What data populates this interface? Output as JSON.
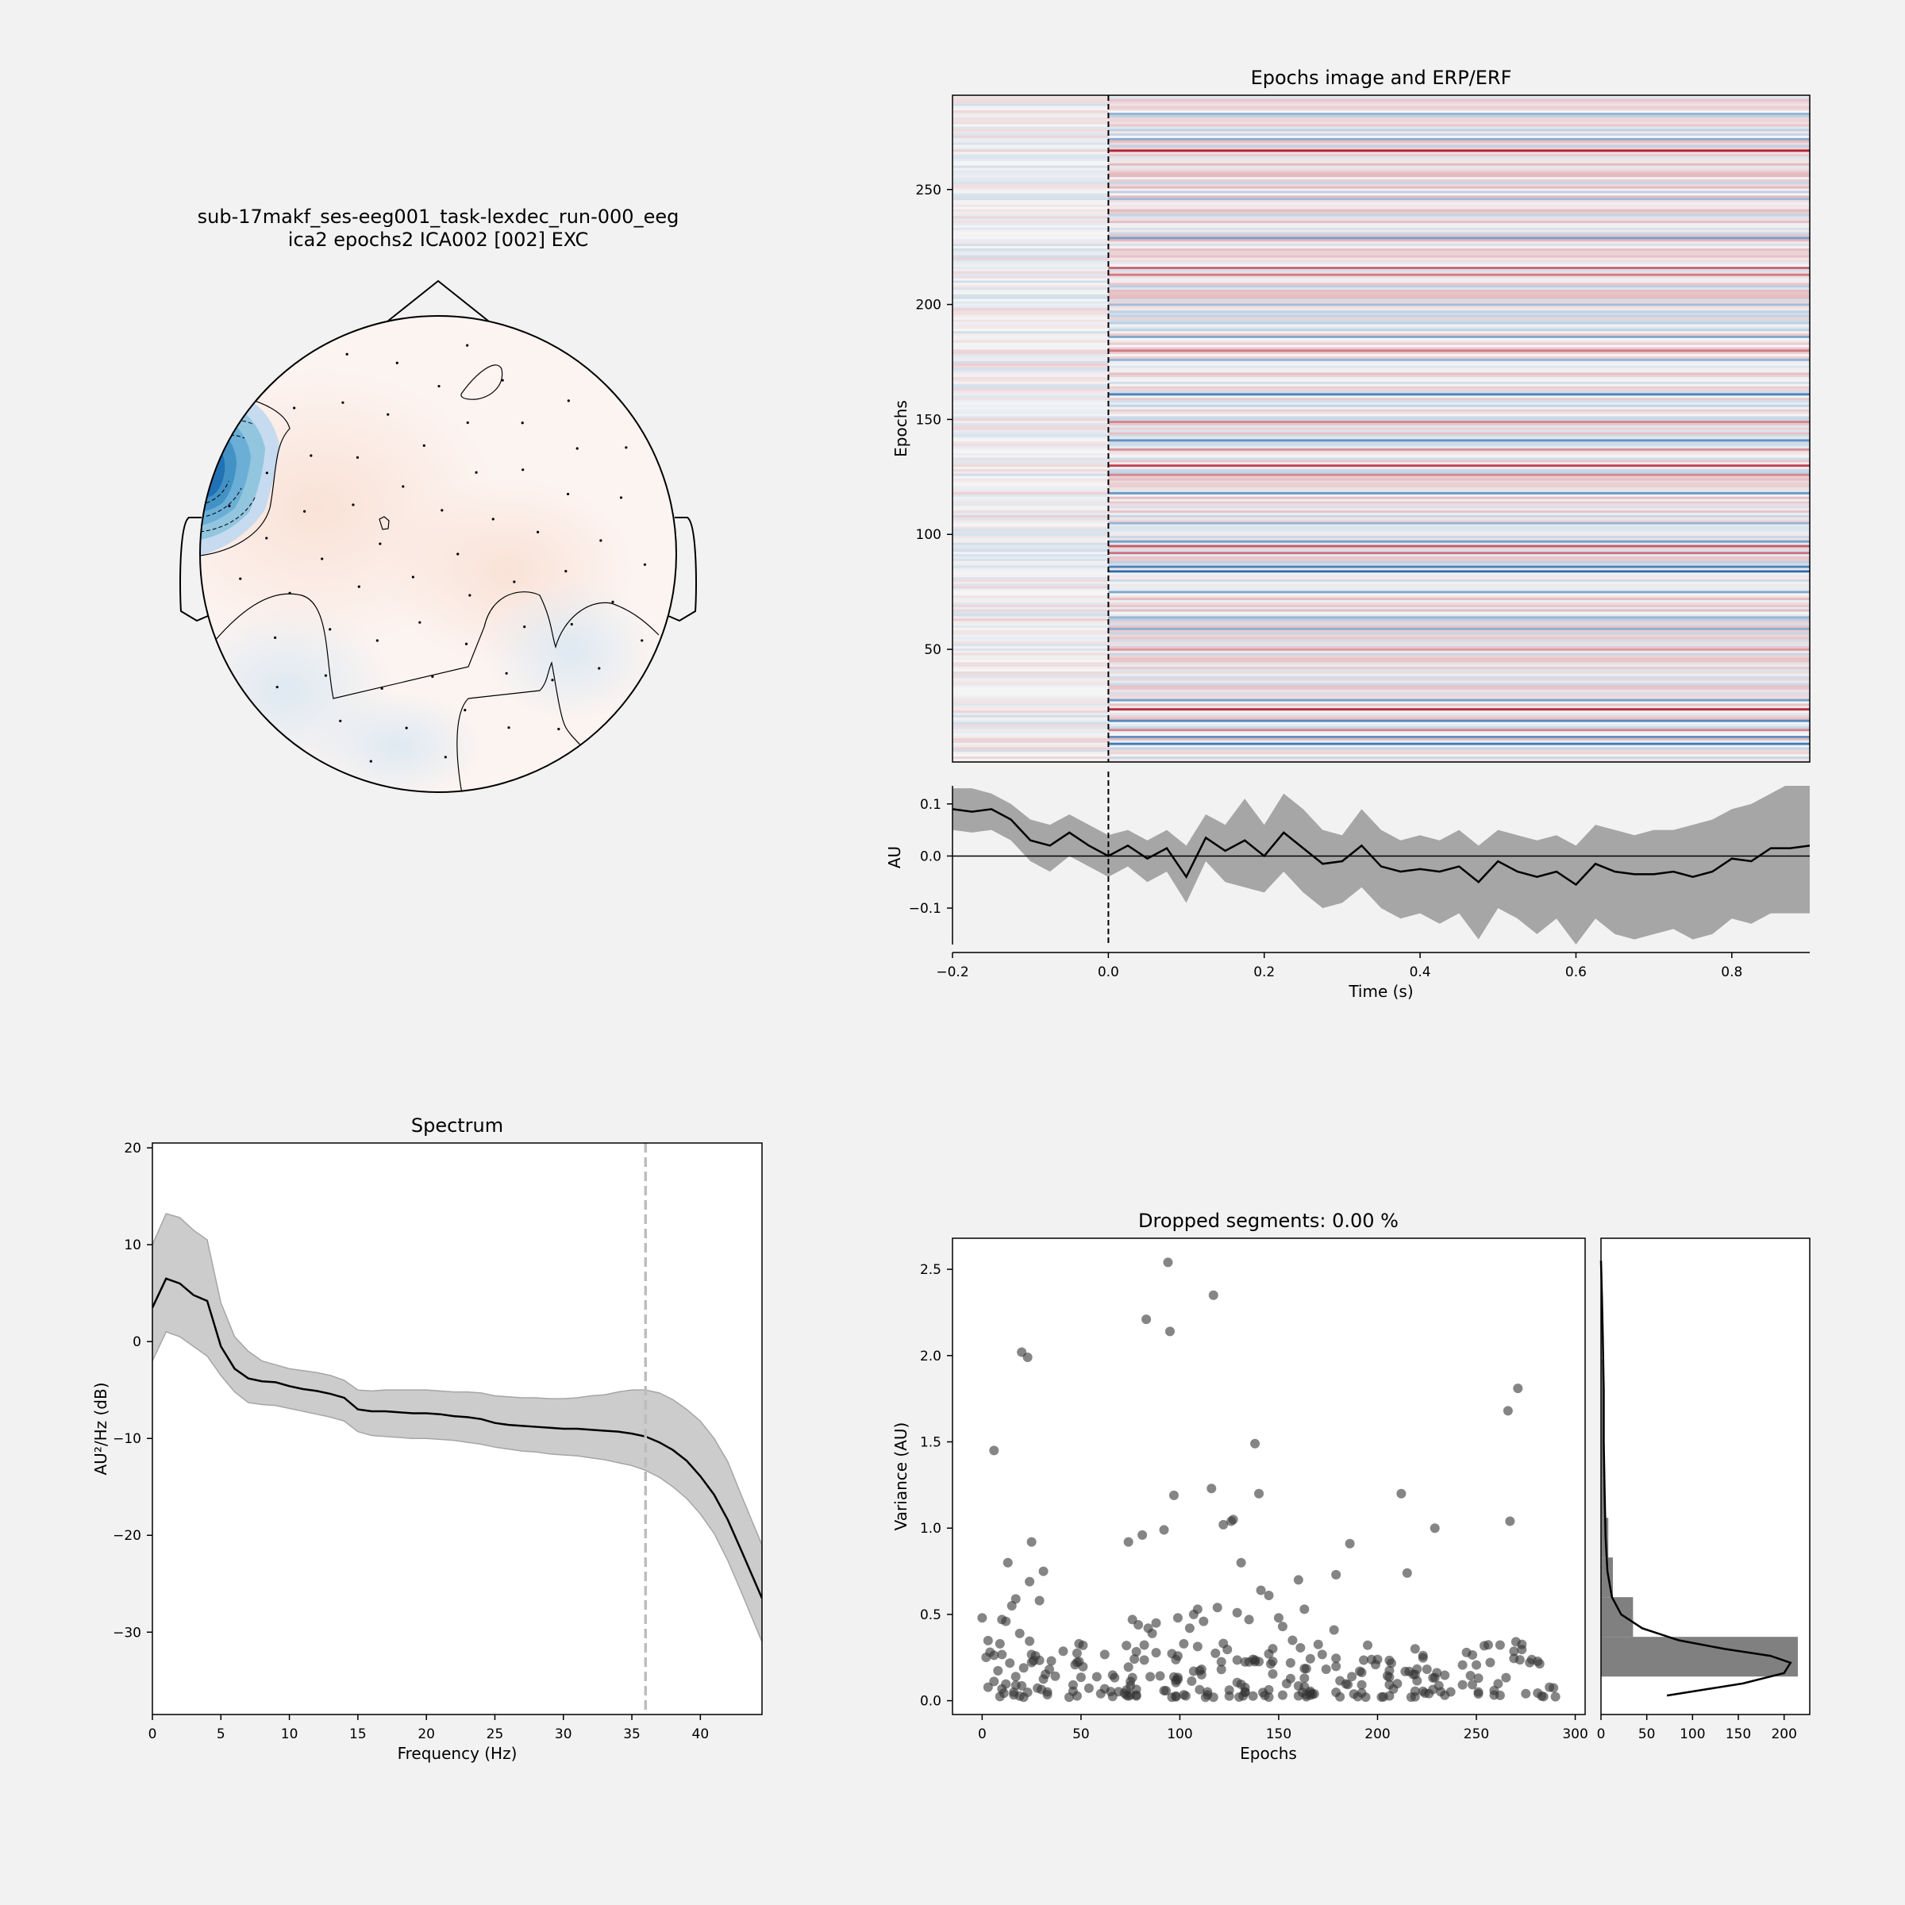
{
  "topomap": {
    "title_line1": "sub-17makf_ses-eeg001_task-lexdec_run-000_eeg",
    "title_line2": "ica2 epochs2 ICA002 [002] EXC"
  },
  "colors": {
    "background": "#f2f2f2",
    "negative": "#08306b",
    "positive": "#67001f",
    "band_erp": "#a6a6a6",
    "band_psd": "#cccccc",
    "scatter": "#333333",
    "hist": "#808080"
  },
  "chart_data": [
    {
      "type": "heatmap",
      "id": "epochs_image",
      "title": "Epochs image and ERP/ERF",
      "xlabel": "",
      "ylabel": "Epochs",
      "xlim": [
        -0.2,
        0.9
      ],
      "ylim": [
        1,
        291
      ],
      "yticks": [
        50,
        100,
        150,
        200,
        250
      ],
      "n_epochs": 290,
      "stimulus_onset": 0.0,
      "colormap": "RdBu_r",
      "strong_rows": [
        {
          "epoch": 9,
          "sign": -1,
          "strength": 0.85
        },
        {
          "epoch": 12,
          "sign": -1,
          "strength": 0.7
        },
        {
          "epoch": 15,
          "sign": 1,
          "strength": 0.5
        },
        {
          "epoch": 19,
          "sign": -1,
          "strength": 0.75
        },
        {
          "epoch": 24,
          "sign": 1,
          "strength": 0.9
        },
        {
          "epoch": 28,
          "sign": -1,
          "strength": 0.6
        },
        {
          "epoch": 50,
          "sign": 1,
          "strength": 0.4
        },
        {
          "epoch": 59,
          "sign": -1,
          "strength": 0.5
        },
        {
          "epoch": 64,
          "sign": -1,
          "strength": 0.45
        },
        {
          "epoch": 75,
          "sign": -1,
          "strength": 0.55
        },
        {
          "epoch": 84,
          "sign": -1,
          "strength": 0.95
        },
        {
          "epoch": 86,
          "sign": -1,
          "strength": 0.8
        },
        {
          "epoch": 92,
          "sign": 1,
          "strength": 0.6
        },
        {
          "epoch": 95,
          "sign": 1,
          "strength": 0.7
        },
        {
          "epoch": 97,
          "sign": -1,
          "strength": 0.6
        },
        {
          "epoch": 105,
          "sign": -1,
          "strength": 0.45
        },
        {
          "epoch": 118,
          "sign": -1,
          "strength": 0.65
        },
        {
          "epoch": 126,
          "sign": 1,
          "strength": 0.5
        },
        {
          "epoch": 130,
          "sign": 1,
          "strength": 0.8
        },
        {
          "epoch": 137,
          "sign": 1,
          "strength": 0.45
        },
        {
          "epoch": 141,
          "sign": -1,
          "strength": 0.7
        },
        {
          "epoch": 149,
          "sign": 1,
          "strength": 0.5
        },
        {
          "epoch": 161,
          "sign": -1,
          "strength": 0.8
        },
        {
          "epoch": 176,
          "sign": -1,
          "strength": 0.45
        },
        {
          "epoch": 180,
          "sign": 1,
          "strength": 0.55
        },
        {
          "epoch": 186,
          "sign": -1,
          "strength": 0.55
        },
        {
          "epoch": 200,
          "sign": -1,
          "strength": 0.4
        },
        {
          "epoch": 213,
          "sign": 1,
          "strength": 0.55
        },
        {
          "epoch": 216,
          "sign": 1,
          "strength": 0.65
        },
        {
          "epoch": 229,
          "sign": -1,
          "strength": 0.6
        },
        {
          "epoch": 246,
          "sign": -1,
          "strength": 0.4
        },
        {
          "epoch": 267,
          "sign": 1,
          "strength": 0.95
        },
        {
          "epoch": 272,
          "sign": -1,
          "strength": 0.5
        },
        {
          "epoch": 283,
          "sign": -1,
          "strength": 0.45
        }
      ]
    },
    {
      "type": "line",
      "id": "erp",
      "xlabel": "Time (s)",
      "ylabel": "AU",
      "xlim": [
        -0.2,
        0.9
      ],
      "ylim": [
        -0.17,
        0.15
      ],
      "xticks": [
        -0.2,
        0.0,
        0.2,
        0.4,
        0.6,
        0.8
      ],
      "yticks": [
        -0.1,
        0.0,
        0.1
      ],
      "x": [
        -0.2,
        -0.175,
        -0.15,
        -0.125,
        -0.1,
        -0.075,
        -0.05,
        -0.025,
        0.0,
        0.025,
        0.05,
        0.075,
        0.1,
        0.125,
        0.15,
        0.175,
        0.2,
        0.225,
        0.25,
        0.275,
        0.3,
        0.325,
        0.35,
        0.375,
        0.4,
        0.425,
        0.45,
        0.475,
        0.5,
        0.525,
        0.55,
        0.575,
        0.6,
        0.625,
        0.65,
        0.675,
        0.7,
        0.725,
        0.75,
        0.775,
        0.8,
        0.825,
        0.85,
        0.875,
        0.9
      ],
      "mean": [
        0.09,
        0.085,
        0.09,
        0.07,
        0.03,
        0.02,
        0.045,
        0.02,
        0.0,
        0.02,
        -0.005,
        0.015,
        -0.04,
        0.035,
        0.01,
        0.03,
        0.0,
        0.045,
        0.015,
        -0.015,
        -0.01,
        0.02,
        -0.02,
        -0.03,
        -0.025,
        -0.03,
        -0.02,
        -0.05,
        -0.01,
        -0.03,
        -0.04,
        -0.03,
        -0.055,
        -0.015,
        -0.03,
        -0.035,
        -0.035,
        -0.03,
        -0.04,
        -0.03,
        -0.005,
        -0.01,
        0.015,
        0.015,
        0.02
      ],
      "upper": [
        0.13,
        0.13,
        0.12,
        0.1,
        0.07,
        0.06,
        0.08,
        0.06,
        0.04,
        0.05,
        0.03,
        0.05,
        0.02,
        0.08,
        0.06,
        0.11,
        0.06,
        0.12,
        0.09,
        0.05,
        0.04,
        0.09,
        0.05,
        0.03,
        0.04,
        0.03,
        0.05,
        0.02,
        0.05,
        0.04,
        0.03,
        0.04,
        0.02,
        0.06,
        0.05,
        0.04,
        0.05,
        0.05,
        0.06,
        0.07,
        0.09,
        0.1,
        0.12,
        0.14,
        0.15
      ],
      "lower": [
        0.05,
        0.045,
        0.05,
        0.03,
        -0.01,
        -0.03,
        0.0,
        -0.02,
        -0.04,
        -0.02,
        -0.05,
        -0.03,
        -0.09,
        -0.01,
        -0.05,
        -0.06,
        -0.07,
        -0.03,
        -0.07,
        -0.1,
        -0.09,
        -0.06,
        -0.1,
        -0.12,
        -0.11,
        -0.13,
        -0.11,
        -0.16,
        -0.1,
        -0.12,
        -0.15,
        -0.12,
        -0.17,
        -0.12,
        -0.15,
        -0.16,
        -0.15,
        -0.14,
        -0.16,
        -0.15,
        -0.12,
        -0.13,
        -0.11,
        -0.11,
        -0.11
      ]
    },
    {
      "type": "line",
      "id": "spectrum",
      "title": "Spectrum",
      "xlabel": "Frequency (Hz)",
      "ylabel": "AU²/Hz (dB)",
      "xlim": [
        0,
        44.5
      ],
      "ylim": [
        -38.5,
        20.5
      ],
      "xticks": [
        0,
        5,
        10,
        15,
        20,
        25,
        30,
        35,
        40
      ],
      "yticks": [
        -30,
        -20,
        -10,
        0,
        10,
        20
      ],
      "marker_x": 36,
      "x": [
        0,
        1,
        2,
        3,
        4,
        5,
        6,
        7,
        8,
        9,
        10,
        11,
        12,
        13,
        14,
        15,
        16,
        17,
        18,
        19,
        20,
        21,
        22,
        23,
        24,
        25,
        26,
        27,
        28,
        29,
        30,
        31,
        32,
        33,
        34,
        35,
        36,
        37,
        38,
        39,
        40,
        41,
        42,
        43,
        44.5
      ],
      "mean": [
        3.5,
        6.5,
        6.0,
        4.8,
        4.2,
        -0.5,
        -2.8,
        -3.8,
        -4.1,
        -4.2,
        -4.6,
        -4.9,
        -5.1,
        -5.4,
        -5.8,
        -7.0,
        -7.2,
        -7.2,
        -7.3,
        -7.4,
        -7.4,
        -7.5,
        -7.7,
        -7.8,
        -8.0,
        -8.4,
        -8.6,
        -8.7,
        -8.8,
        -8.9,
        -9.0,
        -9.0,
        -9.1,
        -9.2,
        -9.3,
        -9.5,
        -9.8,
        -10.4,
        -11.2,
        -12.3,
        -13.9,
        -15.8,
        -18.4,
        -21.6,
        -26.5
      ],
      "upper": [
        10.0,
        13.2,
        12.8,
        11.5,
        10.5,
        4.0,
        0.5,
        -1.0,
        -2.0,
        -2.4,
        -2.8,
        -3.0,
        -3.2,
        -3.5,
        -4.0,
        -5.0,
        -5.1,
        -5.0,
        -5.0,
        -5.0,
        -5.0,
        -5.1,
        -5.2,
        -5.2,
        -5.3,
        -5.6,
        -5.7,
        -5.8,
        -5.8,
        -5.9,
        -5.9,
        -5.8,
        -5.6,
        -5.5,
        -5.2,
        -5.0,
        -5.0,
        -5.3,
        -6.0,
        -7.0,
        -8.2,
        -10.0,
        -12.4,
        -15.9,
        -21.0
      ],
      "lower": [
        -2.0,
        1.0,
        0.5,
        -0.5,
        -1.5,
        -3.5,
        -5.2,
        -6.3,
        -6.5,
        -6.6,
        -6.9,
        -7.2,
        -7.5,
        -7.8,
        -8.2,
        -9.3,
        -9.7,
        -9.8,
        -9.9,
        -10.0,
        -10.0,
        -10.1,
        -10.2,
        -10.4,
        -10.6,
        -10.9,
        -11.1,
        -11.3,
        -11.4,
        -11.6,
        -11.7,
        -11.8,
        -12.0,
        -12.2,
        -12.5,
        -12.8,
        -13.3,
        -14.0,
        -15.0,
        -16.2,
        -17.8,
        -19.8,
        -22.6,
        -25.9,
        -31.0
      ]
    },
    {
      "type": "scatter",
      "id": "dropped_segments",
      "title": "Dropped segments: 0.00 %",
      "xlabel": "Epochs",
      "ylabel": "Variance (AU)",
      "xlim": [
        -15,
        305
      ],
      "ylim": [
        -0.08,
        2.68
      ],
      "xticks": [
        0,
        50,
        100,
        150,
        200,
        250,
        300
      ],
      "yticks": [
        0.0,
        0.5,
        1.0,
        1.5,
        2.0,
        2.5
      ],
      "n_background": 250,
      "background_range": [
        0.02,
        0.35
      ],
      "points": [
        [
          0,
          0.48
        ],
        [
          6,
          1.45
        ],
        [
          9,
          0.33
        ],
        [
          10,
          0.47
        ],
        [
          12,
          0.46
        ],
        [
          13,
          0.8
        ],
        [
          15,
          0.55
        ],
        [
          17,
          0.59
        ],
        [
          19,
          0.39
        ],
        [
          20,
          2.02
        ],
        [
          21,
          0.19
        ],
        [
          23,
          1.99
        ],
        [
          24,
          0.69
        ],
        [
          25,
          0.92
        ],
        [
          27,
          0.26
        ],
        [
          29,
          0.58
        ],
        [
          31,
          0.75
        ],
        [
          74,
          0.92
        ],
        [
          76,
          0.47
        ],
        [
          79,
          0.44
        ],
        [
          81,
          0.96
        ],
        [
          83,
          2.21
        ],
        [
          84,
          0.42
        ],
        [
          86,
          0.39
        ],
        [
          88,
          0.45
        ],
        [
          92,
          0.99
        ],
        [
          94,
          2.54
        ],
        [
          95,
          2.14
        ],
        [
          97,
          1.19
        ],
        [
          99,
          0.48
        ],
        [
          102,
          0.33
        ],
        [
          105,
          0.42
        ],
        [
          107,
          0.5
        ],
        [
          109,
          0.53
        ],
        [
          112,
          0.46
        ],
        [
          116,
          1.23
        ],
        [
          117,
          2.35
        ],
        [
          119,
          0.54
        ],
        [
          122,
          1.02
        ],
        [
          126,
          1.04
        ],
        [
          127,
          1.05
        ],
        [
          129,
          0.51
        ],
        [
          131,
          0.8
        ],
        [
          135,
          0.47
        ],
        [
          138,
          1.49
        ],
        [
          140,
          1.2
        ],
        [
          141,
          0.64
        ],
        [
          145,
          0.61
        ],
        [
          150,
          0.48
        ],
        [
          152,
          0.43
        ],
        [
          157,
          0.35
        ],
        [
          160,
          0.7
        ],
        [
          163,
          0.53
        ],
        [
          178,
          0.41
        ],
        [
          179,
          0.73
        ],
        [
          186,
          0.91
        ],
        [
          212,
          1.2
        ],
        [
          215,
          0.74
        ],
        [
          229,
          1.0
        ],
        [
          266,
          1.68
        ],
        [
          267,
          1.04
        ],
        [
          271,
          1.81
        ]
      ],
      "hist_bins": [
        0.14,
        0.37,
        0.6,
        0.83,
        1.06,
        1.29,
        1.52,
        1.75,
        1.98,
        2.21,
        2.44
      ],
      "hist_counts": [
        215,
        35,
        13,
        8,
        4,
        3,
        2,
        2,
        1,
        1
      ],
      "hist_xlim": [
        0,
        228
      ],
      "hist_xticks": [
        0,
        50,
        100,
        150,
        200
      ],
      "kde_y": [
        0.03,
        0.1,
        0.16,
        0.22,
        0.26,
        0.3,
        0.35,
        0.42,
        0.5,
        0.6,
        0.75,
        0.95,
        1.2,
        1.5,
        1.8,
        2.1,
        2.35,
        2.55
      ],
      "kde_x": [
        72,
        155,
        200,
        207,
        185,
        135,
        85,
        45,
        22,
        12,
        7,
        5,
        4,
        3,
        3,
        2,
        1,
        0
      ]
    }
  ]
}
